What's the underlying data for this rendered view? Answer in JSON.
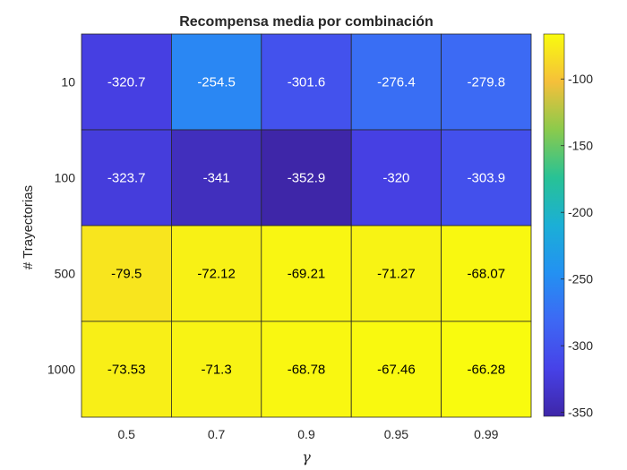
{
  "chart_data": {
    "type": "heatmap",
    "title": "Recompensa media por combinación",
    "xlabel": "γ",
    "ylabel": "# Trayectorias",
    "x_categories": [
      "0.5",
      "0.7",
      "0.9",
      "0.95",
      "0.99"
    ],
    "y_categories": [
      "10",
      "100",
      "500",
      "1000"
    ],
    "values": [
      [
        -320.7,
        -254.5,
        -301.6,
        -276.4,
        -279.8
      ],
      [
        -323.7,
        -341,
        -352.9,
        -320,
        -303.9
      ],
      [
        -79.5,
        -72.12,
        -69.21,
        -71.27,
        -68.07
      ],
      [
        -73.53,
        -71.3,
        -68.78,
        -67.46,
        -66.28
      ]
    ],
    "value_labels": [
      [
        "-320.7",
        "-254.5",
        "-301.6",
        "-276.4",
        "-279.8"
      ],
      [
        "-323.7",
        "-341",
        "-352.9",
        "-320",
        "-303.9"
      ],
      [
        "-79.5",
        "-72.12",
        "-69.21",
        "-71.27",
        "-68.07"
      ],
      [
        "-73.53",
        "-71.3",
        "-68.78",
        "-67.46",
        "-66.28"
      ]
    ],
    "colorbar": {
      "range": [
        -352.9,
        -66.28
      ],
      "ticks": [
        -350,
        -300,
        -250,
        -200,
        -150,
        -100
      ],
      "tick_labels": [
        "-350",
        "-300",
        "-250",
        "-200",
        "-150",
        "-100"
      ],
      "colormap": "parula"
    },
    "grid": true
  }
}
